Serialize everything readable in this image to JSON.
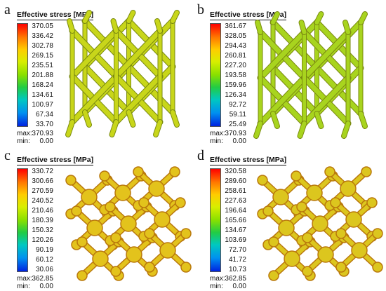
{
  "panels": [
    {
      "letter": "a",
      "legend_title": "Effective stress [MPa]",
      "ticks": [
        "370.05",
        "336.42",
        "302.78",
        "269.15",
        "235.51",
        "201.88",
        "168.24",
        "134.61",
        "100.97",
        "67.34",
        "33.70"
      ],
      "max_label": "max:",
      "max_value": "370.93",
      "min_label": "min:",
      "min_value": "0.00",
      "model_shape": "strut-lattice",
      "model_color": "#c8d61a"
    },
    {
      "letter": "b",
      "legend_title": "Effective stress [MPa]",
      "ticks": [
        "361.67",
        "328.05",
        "294.43",
        "260.81",
        "227.20",
        "193.58",
        "159.96",
        "126.34",
        "92.72",
        "59.11",
        "25.49"
      ],
      "max_label": "max:",
      "max_value": "370.93",
      "min_label": "min:",
      "min_value": "0.00",
      "model_shape": "strut-lattice",
      "model_color": "#a8d41e"
    },
    {
      "letter": "c",
      "legend_title": "Effective stress [MPa]",
      "ticks": [
        "330.72",
        "300.66",
        "270.59",
        "240.52",
        "210.46",
        "180.39",
        "150.32",
        "120.26",
        "90.19",
        "60.12",
        "30.06"
      ],
      "max_label": "max:",
      "max_value": "362.85",
      "min_label": "min:",
      "min_value": "0.00",
      "model_shape": "node-lattice",
      "model_color": "#e3c31c"
    },
    {
      "letter": "d",
      "legend_title": "Effective stress [MPa]",
      "ticks": [
        "320.58",
        "289.60",
        "258.61",
        "227.63",
        "196.64",
        "165.66",
        "134.67",
        "103.69",
        "72.70",
        "41.72",
        "10.73"
      ],
      "max_label": "max:",
      "max_value": "362.85",
      "min_label": "min:",
      "min_value": "0.00",
      "model_shape": "node-lattice",
      "model_color": "#dcc61e"
    }
  ]
}
